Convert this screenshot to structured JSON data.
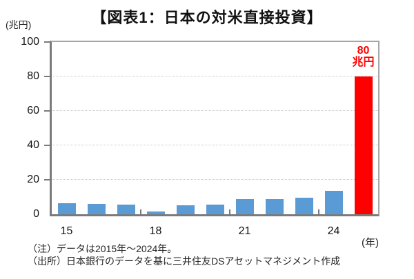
{
  "chart_data": {
    "type": "bar",
    "title": "【図表1：日本の対米直接投資】",
    "y_axis": {
      "unit": "(兆円)",
      "min": 0,
      "max": 100,
      "ticks": [
        0,
        20,
        40,
        60,
        80,
        100
      ],
      "gridlines": [
        20,
        40,
        60,
        80
      ],
      "grid_style": "dotted"
    },
    "x_axis": {
      "unit": "(年)",
      "tick_labels": [
        {
          "label": "15",
          "slot": 0
        },
        {
          "label": "18",
          "slot": 3
        },
        {
          "label": "21",
          "slot": 6
        },
        {
          "label": "24",
          "slot": 9
        }
      ],
      "divider_slots": [
        3,
        6,
        9
      ]
    },
    "bars": [
      {
        "category": "15",
        "value": 6.3,
        "series": "actual"
      },
      {
        "category": "16",
        "value": 5.9,
        "series": "actual"
      },
      {
        "category": "17",
        "value": 5.5,
        "series": "actual"
      },
      {
        "category": "18",
        "value": 1.8,
        "series": "actual"
      },
      {
        "category": "19",
        "value": 5.4,
        "series": "actual"
      },
      {
        "category": "20",
        "value": 5.8,
        "series": "actual"
      },
      {
        "category": "21",
        "value": 8.9,
        "series": "actual"
      },
      {
        "category": "22",
        "value": 8.7,
        "series": "actual"
      },
      {
        "category": "23",
        "value": 9.8,
        "series": "actual"
      },
      {
        "category": "24",
        "value": 13.6,
        "series": "actual"
      },
      {
        "category": "",
        "value": 80,
        "series": "highlight",
        "annotation": [
          "80",
          "兆円"
        ]
      }
    ],
    "colors": {
      "actual": "#5B9BD5",
      "highlight": "#FF0000",
      "annotation_text": "#FF0000"
    },
    "legend": "none"
  },
  "notes": {
    "note1": "（注）データは2015年～2024年。",
    "note2": "（出所）日本銀行のデータを基に三井住友DSアセットマネジメント作成"
  }
}
